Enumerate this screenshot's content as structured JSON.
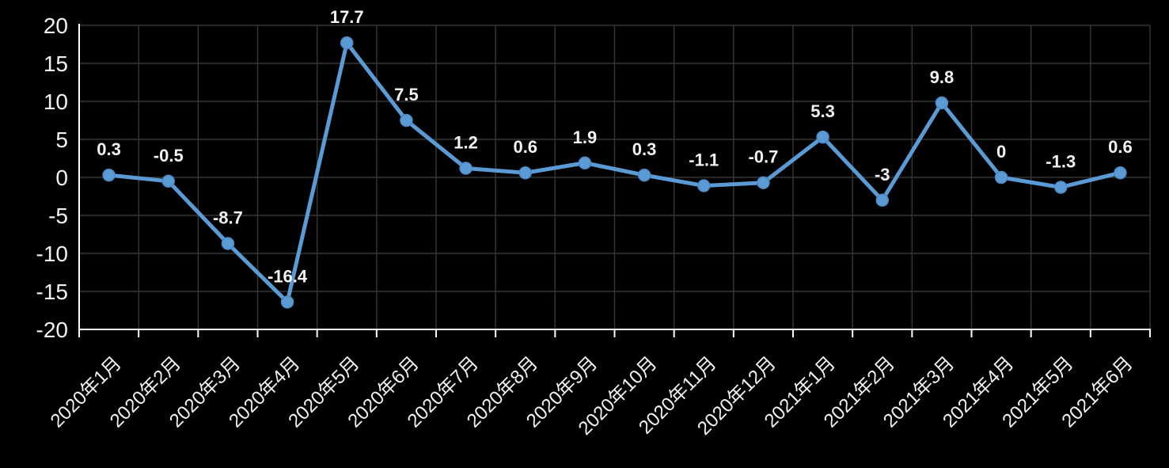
{
  "chart_data": {
    "type": "line",
    "title": "",
    "xlabel": "",
    "ylabel": "",
    "categories": [
      "2020年1月",
      "2020年2月",
      "2020年3月",
      "2020年4月",
      "2020年5月",
      "2020年6月",
      "2020年7月",
      "2020年8月",
      "2020年9月",
      "2020年10月",
      "2020年11月",
      "2020年12月",
      "2021年1月",
      "2021年2月",
      "2021年3月",
      "2021年4月",
      "2021年5月",
      "2021年6月"
    ],
    "series": [
      {
        "name": "",
        "values": [
          0.3,
          -0.5,
          -8.7,
          -16.4,
          17.7,
          7.5,
          1.2,
          0.6,
          1.9,
          0.3,
          -1.1,
          -0.7,
          5.3,
          -3,
          9.8,
          0,
          -1.3,
          0.6
        ]
      }
    ],
    "data_labels": [
      "0.3",
      "-0.5",
      "-8.7",
      "-16.4",
      "17.7",
      "7.5",
      "1.2",
      "0.6",
      "1.9",
      "0.3",
      "-1.1",
      "-0.7",
      "5.3",
      "-3",
      "9.8",
      "0",
      "-1.3",
      "0.6"
    ],
    "y_ticks": [
      20,
      15,
      10,
      5,
      0,
      -5,
      -10,
      -15,
      -20
    ],
    "ylim": [
      -20,
      20
    ],
    "grid": true,
    "legend": "none",
    "x_label_rotation_deg": -45,
    "colors": {
      "background": "#000000",
      "line": "#5B9BD5",
      "marker_fill": "#5B9BD5",
      "marker_edge": "#4E88C2",
      "gridline": "#353535",
      "axis_line": "#FFFFFF",
      "tick_text": "#F2F2F2",
      "data_label_text": "#F2F2F2"
    }
  }
}
